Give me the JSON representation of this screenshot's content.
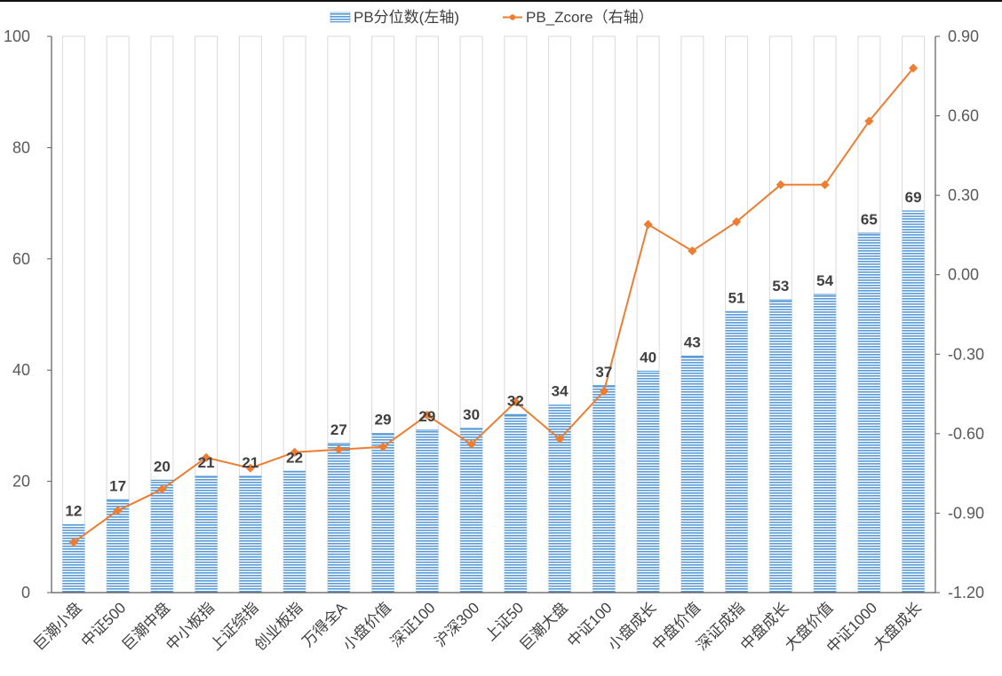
{
  "chart_data": {
    "type": "bar+line",
    "categories": [
      "巨潮小盘",
      "中证500",
      "巨潮中盘",
      "中小板指",
      "上证综指",
      "创业板指",
      "万得全A",
      "小盘价值",
      "深证100",
      "沪深300",
      "上证50",
      "巨潮大盘",
      "中证100",
      "小盘成长",
      "中盘价值",
      "深证成指",
      "中盘成长",
      "大盘价值",
      "中证1000",
      "大盘成长"
    ],
    "series": [
      {
        "name": "PB分位数(左轴)",
        "type": "bar",
        "axis": "left",
        "color": "#5B9BD5",
        "values": [
          12.2,
          16.7,
          20.2,
          20.9,
          20.9,
          21.8,
          26.8,
          28.6,
          29.2,
          29.5,
          32.0,
          33.7,
          37.2,
          39.8,
          42.5,
          50.5,
          52.6,
          53.6,
          64.6,
          68.6
        ],
        "labels": [
          "12",
          "17",
          "20",
          "21",
          "21",
          "22",
          "27",
          "29",
          "29",
          "30",
          "32",
          "34",
          "37",
          "40",
          "43",
          "51",
          "53",
          "54",
          "65",
          "69"
        ]
      },
      {
        "name": "PB_Zcore（右轴）",
        "type": "line",
        "axis": "right",
        "color": "#ED7D31",
        "values": [
          -1.01,
          -0.89,
          -0.81,
          -0.69,
          -0.73,
          -0.67,
          -0.66,
          -0.65,
          -0.53,
          -0.64,
          -0.48,
          -0.62,
          -0.44,
          0.19,
          0.09,
          0.2,
          0.34,
          0.34,
          0.58,
          0.78
        ]
      }
    ],
    "left_axis": {
      "range": [
        0,
        100
      ],
      "ticks": [
        "0",
        "20",
        "40",
        "60",
        "80",
        "100"
      ]
    },
    "right_axis": {
      "range": [
        -1.2,
        0.9
      ],
      "ticks": [
        "-1.20",
        "-0.90",
        "-0.60",
        "-0.30",
        "0.00",
        "0.30",
        "0.60",
        "0.90"
      ]
    },
    "legend": "top-center"
  }
}
